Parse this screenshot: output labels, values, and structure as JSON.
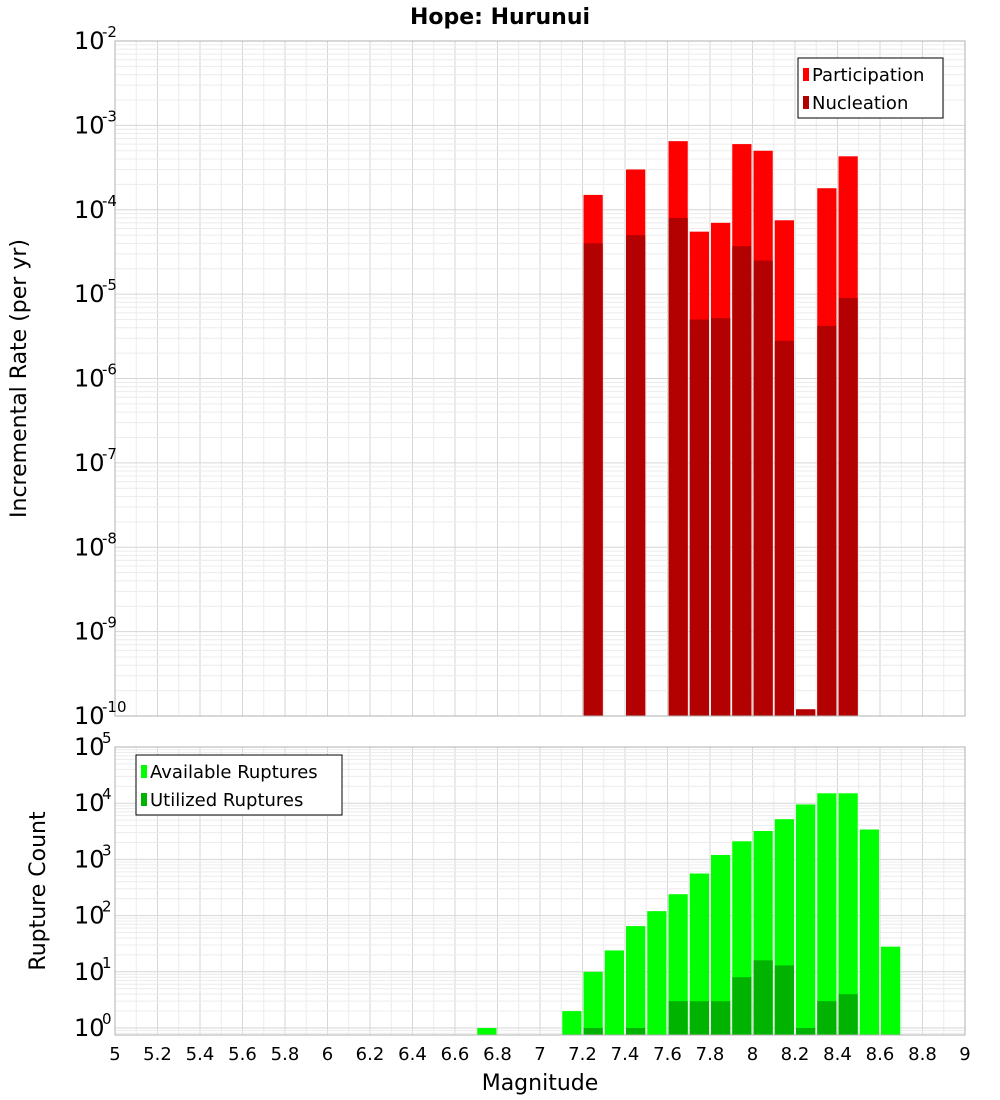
{
  "chart_data": [
    {
      "type": "bar",
      "title": "Hope: Hurunui",
      "xlabel": "Magnitude",
      "ylabel": "Incremental Rate (per yr)",
      "yscale": "log",
      "ylim": [
        1e-10,
        0.01
      ],
      "xlim": [
        5,
        9
      ],
      "bin_width": 0.1,
      "legend_position": "top-right",
      "series": [
        {
          "name": "Participation",
          "color": "#ff0000",
          "x": [
            7.25,
            7.45,
            7.65,
            7.75,
            7.85,
            7.95,
            8.05,
            8.15,
            8.25,
            8.35,
            8.45
          ],
          "values": [
            0.00015,
            0.0003,
            0.00065,
            5.5e-05,
            7e-05,
            0.0006,
            0.0005,
            7.5e-05,
            1.2e-10,
            0.00018,
            0.00043
          ]
        },
        {
          "name": "Nucleation",
          "color": "#b30000",
          "x": [
            7.25,
            7.45,
            7.65,
            7.75,
            7.85,
            7.95,
            8.05,
            8.15,
            8.25,
            8.35,
            8.45
          ],
          "values": [
            4e-05,
            5e-05,
            8e-05,
            5e-06,
            5.2e-06,
            3.7e-05,
            2.5e-05,
            2.8e-06,
            1.2e-10,
            4.2e-06,
            9e-06
          ]
        }
      ]
    },
    {
      "type": "bar",
      "title": "",
      "xlabel": "Magnitude",
      "ylabel": "Rupture Count",
      "yscale": "log",
      "ylim": [
        0.75,
        100000
      ],
      "xlim": [
        5,
        9
      ],
      "bin_width": 0.1,
      "legend_position": "top-left",
      "series": [
        {
          "name": "Available Ruptures",
          "color": "#00ff00",
          "x": [
            6.75,
            7.15,
            7.25,
            7.35,
            7.45,
            7.55,
            7.65,
            7.75,
            7.85,
            7.95,
            8.05,
            8.15,
            8.25,
            8.35,
            8.45,
            8.55,
            8.65
          ],
          "values": [
            1,
            2,
            10,
            24,
            65,
            120,
            240,
            560,
            1200,
            2100,
            3200,
            5200,
            9500,
            15000,
            15000,
            3400,
            28
          ]
        },
        {
          "name": "Utilized Ruptures",
          "color": "#00b300",
          "x": [
            7.25,
            7.45,
            7.65,
            7.75,
            7.85,
            7.95,
            8.05,
            8.15,
            8.25,
            8.35,
            8.45
          ],
          "values": [
            1,
            1,
            3,
            3,
            3,
            8,
            16,
            13,
            1,
            3,
            4
          ]
        }
      ]
    }
  ],
  "x_ticks": [
    "5",
    "5.2",
    "5.4",
    "5.6",
    "5.8",
    "6",
    "6.2",
    "6.4",
    "6.6",
    "6.8",
    "7",
    "7.2",
    "7.4",
    "7.6",
    "7.8",
    "8",
    "8.2",
    "8.4",
    "8.6",
    "8.8",
    "9"
  ],
  "top_y_ticks": [
    {
      "value": 1e-10,
      "base": "10",
      "exp": "-10"
    },
    {
      "value": 1e-09,
      "base": "10",
      "exp": "-9"
    },
    {
      "value": 1e-08,
      "base": "10",
      "exp": "-8"
    },
    {
      "value": 1e-07,
      "base": "10",
      "exp": "-7"
    },
    {
      "value": 1e-06,
      "base": "10",
      "exp": "-6"
    },
    {
      "value": 1e-05,
      "base": "10",
      "exp": "-5"
    },
    {
      "value": 0.0001,
      "base": "10",
      "exp": "-4"
    },
    {
      "value": 0.001,
      "base": "10",
      "exp": "-3"
    },
    {
      "value": 0.01,
      "base": "10",
      "exp": "-2"
    }
  ],
  "bottom_y_ticks": [
    {
      "value": 1,
      "base": "10",
      "exp": "0"
    },
    {
      "value": 10,
      "base": "10",
      "exp": "1"
    },
    {
      "value": 100,
      "base": "10",
      "exp": "2"
    },
    {
      "value": 1000,
      "base": "10",
      "exp": "3"
    },
    {
      "value": 10000,
      "base": "10",
      "exp": "4"
    },
    {
      "value": 100000,
      "base": "10",
      "exp": "5"
    }
  ]
}
